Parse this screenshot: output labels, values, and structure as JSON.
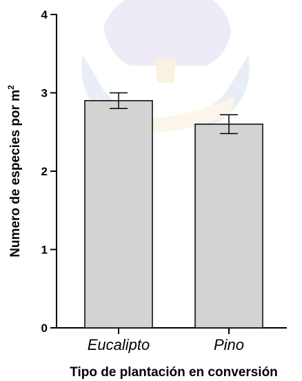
{
  "chart_data": {
    "type": "bar",
    "categories": [
      "Eucalipto",
      "Pino"
    ],
    "values": [
      2.9,
      2.6
    ],
    "errors": [
      0.1,
      0.12
    ],
    "xlabel": "Tipo de plantación en conversión",
    "ylabel": "Numero de especies por m",
    "ylabel_superscript": "2",
    "ylim": [
      0,
      4
    ],
    "yticks": [
      "0",
      "1",
      "2",
      "3",
      "4"
    ],
    "grid": false,
    "bar_color": "#d3d3d3",
    "watermark": "university seal"
  }
}
